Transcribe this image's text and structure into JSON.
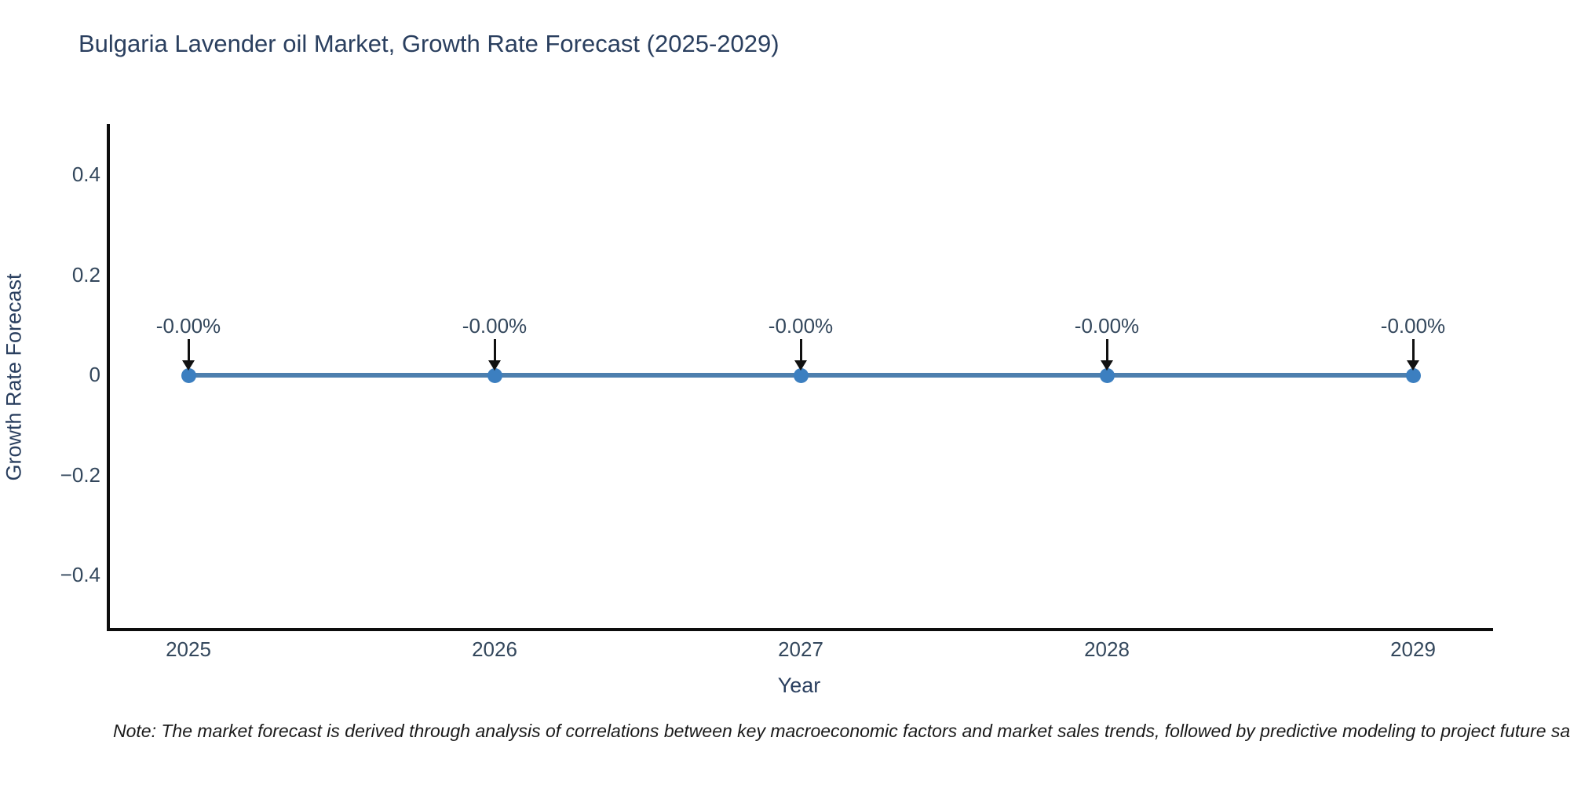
{
  "chart_data": {
    "type": "line",
    "title": "Bulgaria Lavender oil Market, Growth Rate Forecast (2025-2029)",
    "xlabel": "Year",
    "ylabel": "Growth Rate Forecast",
    "x": [
      2025,
      2026,
      2027,
      2028,
      2029
    ],
    "series": [
      {
        "name": "Growth Rate Forecast",
        "values": [
          0,
          0,
          0,
          0,
          0
        ]
      }
    ],
    "point_labels": [
      "-0.00%",
      "-0.00%",
      "-0.00%",
      "-0.00%",
      "-0.00%"
    ],
    "x_tick_labels": [
      "2025",
      "2026",
      "2027",
      "2028",
      "2029"
    ],
    "yticks": [
      0.4,
      0.2,
      0,
      -0.2,
      -0.4
    ],
    "ytick_labels": [
      "0.4",
      "0.2",
      "0",
      "−0.2",
      "−0.4"
    ],
    "ylim": [
      -0.5,
      0.5
    ],
    "grid": false,
    "legend_position": "none",
    "colors": {
      "line": "#4d7fae",
      "marker": "#3c7fc0",
      "axis": "#0d0d0d",
      "title_text": "#2a3f5f",
      "tick_text": "#33475c",
      "annotation_arrow": "#111111"
    }
  },
  "footnote": {
    "text": "Note: The market forecast is derived through analysis of correlations between key macroeconomic factors and market sales trends, followed by predictive modeling to project future sa"
  }
}
